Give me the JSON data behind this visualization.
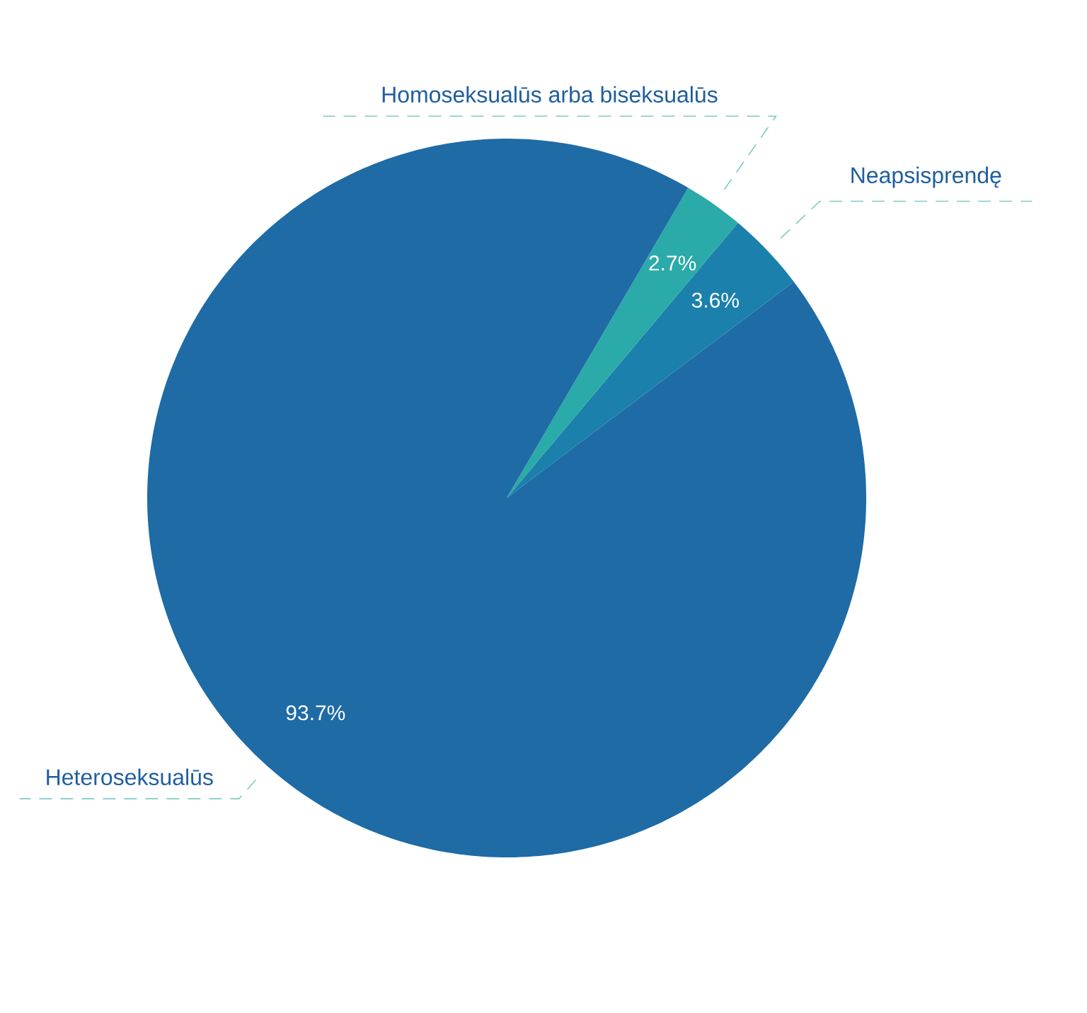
{
  "chart_data": {
    "type": "pie",
    "categories": [
      "Neapsisprendę",
      "Homoseksualūs arba biseksualūs",
      "Heteroseksualūs"
    ],
    "values": [
      3.6,
      2.7,
      93.7
    ],
    "colors": [
      "#1b80ab",
      "#2aaaa8",
      "#1e6ba6"
    ],
    "value_labels": [
      "3.6%",
      "2.7%",
      "93.7%"
    ]
  }
}
